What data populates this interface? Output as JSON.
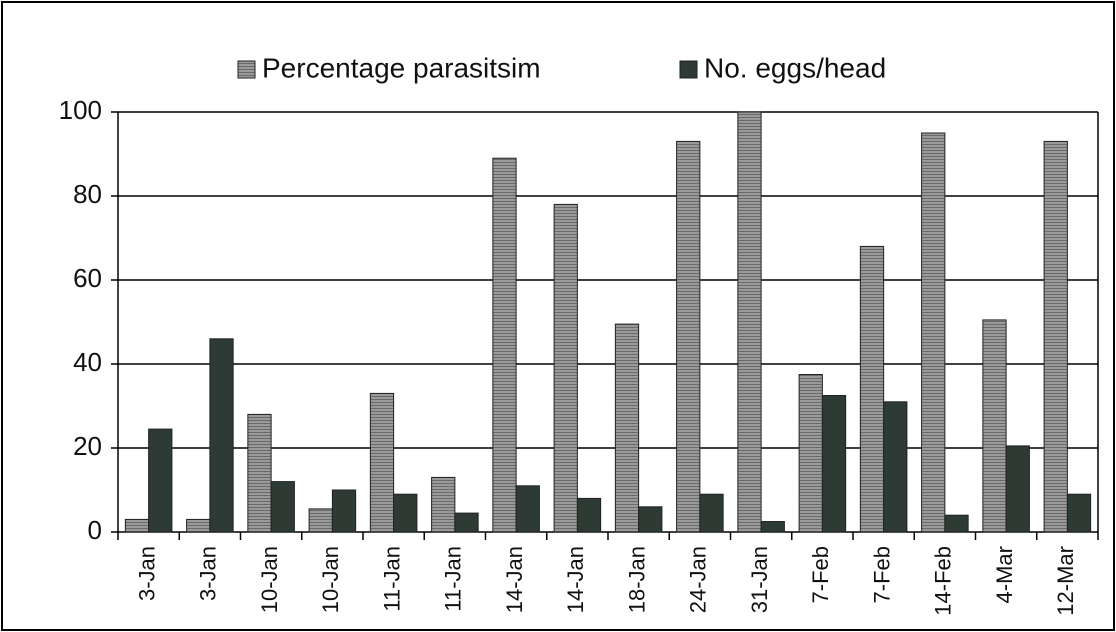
{
  "chart_data": {
    "type": "bar",
    "categories": [
      "3-Jan",
      "3-Jan",
      "10-Jan",
      "10-Jan",
      "11-Jan",
      "11-Jan",
      "14-Jan",
      "14-Jan",
      "18-Jan",
      "24-Jan",
      "31-Jan",
      "7-Feb",
      "7-Feb",
      "14-Feb",
      "4-Mar",
      "12-Mar"
    ],
    "series": [
      {
        "name": "Percentage parasitsim",
        "color": "#8c8c8c",
        "values": [
          3,
          3,
          28,
          5.5,
          33,
          13,
          89,
          78,
          49.5,
          93,
          100,
          37.5,
          68,
          95,
          50.5,
          93
        ]
      },
      {
        "name": "No. eggs/head",
        "color": "#2e3a34",
        "values": [
          24.5,
          46,
          12,
          10,
          9,
          4.5,
          11,
          8,
          6,
          9,
          2.5,
          32.5,
          31,
          4,
          20.5,
          9
        ]
      }
    ],
    "ylim": [
      0,
      100
    ],
    "yticks": [
      0,
      20,
      40,
      60,
      80,
      100
    ],
    "grid": true
  }
}
